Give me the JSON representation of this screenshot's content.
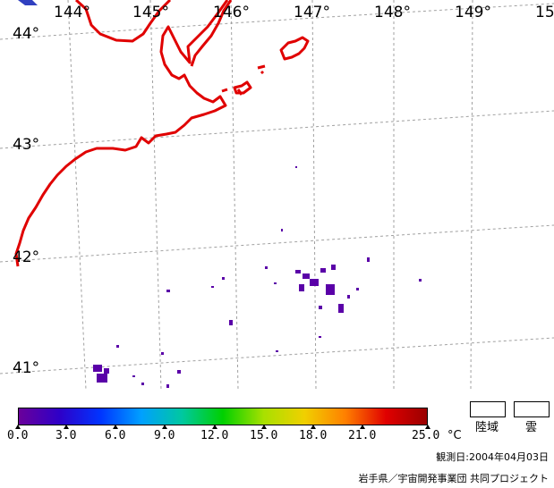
{
  "map": {
    "longitude_labels": [
      "144°",
      "145°",
      "146°",
      "147°",
      "148°",
      "149°",
      "15"
    ],
    "latitude_labels": [
      "44°",
      "43°",
      "42°",
      "41°"
    ],
    "colors": {
      "coastline": "#e00000",
      "graticule": "#a0a0a0",
      "sst_low": "#6000a0",
      "sst_mid": "#3800c0"
    }
  },
  "legend": {
    "tick_labels": [
      "0.0",
      "3.0",
      "6.0",
      "9.0",
      "12.0",
      "15.0",
      "18.0",
      "21.0",
      "25.0"
    ],
    "unit": "°C",
    "color_stops": [
      "#6a009a",
      "#2e00c8",
      "#0034ff",
      "#00a0ff",
      "#00c8a0",
      "#00d000",
      "#a8e000",
      "#f0d000",
      "#ff8000",
      "#e00000",
      "#9a0000"
    ],
    "land_label": "陸域",
    "cloud_label": "雲"
  },
  "footer": {
    "observation_date": "観測日:2004年04月03日",
    "credit": "岩手県／宇宙開発事業団  共同プロジェクト"
  }
}
